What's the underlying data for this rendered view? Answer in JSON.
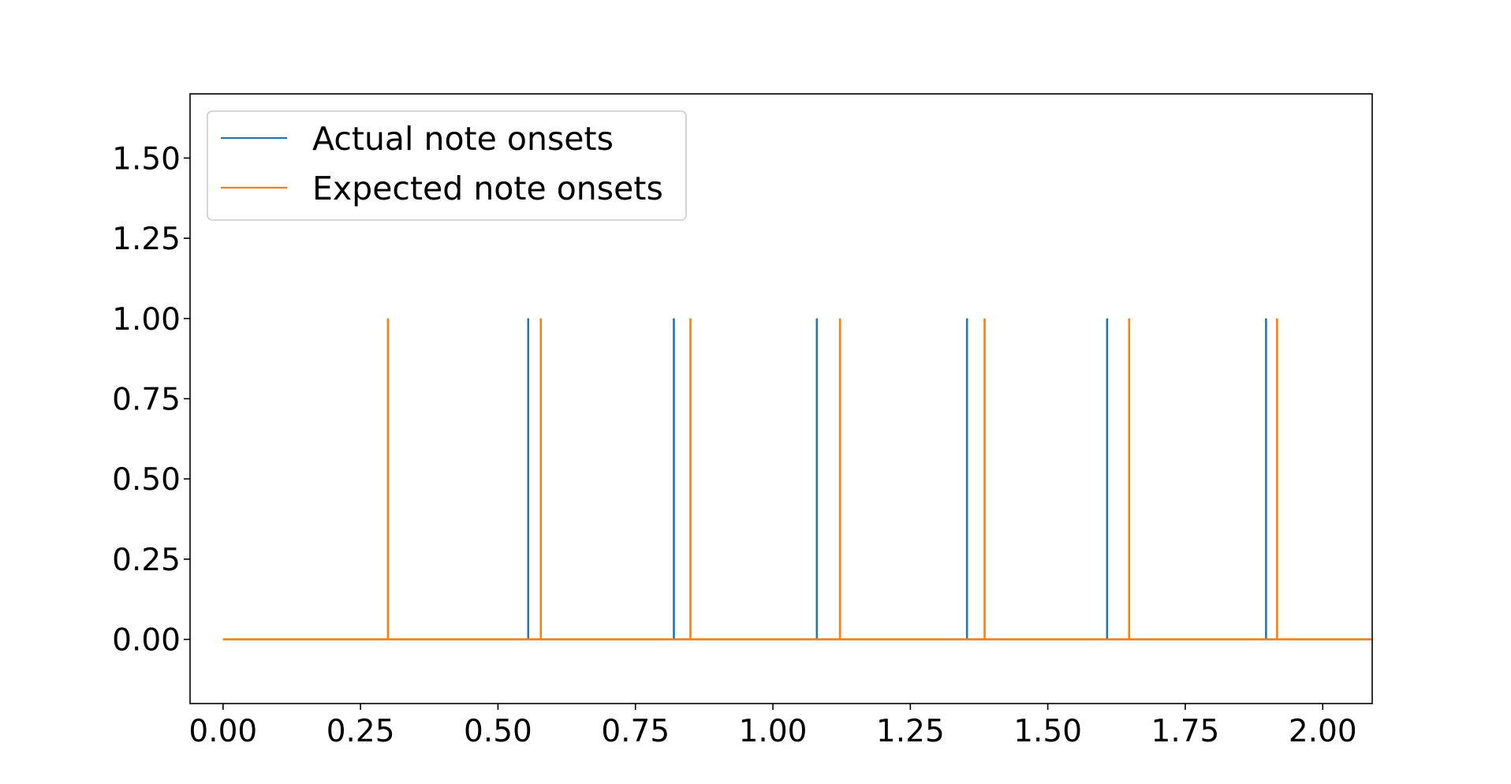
{
  "chart_data": {
    "type": "line",
    "xlim": [
      -0.06,
      2.09
    ],
    "ylim": [
      -0.2,
      1.7
    ],
    "x_ticks": [
      0.0,
      0.25,
      0.5,
      0.75,
      1.0,
      1.25,
      1.5,
      1.75,
      2.0
    ],
    "x_tick_labels": [
      "0.00",
      "0.25",
      "0.50",
      "0.75",
      "1.00",
      "1.25",
      "1.50",
      "1.75",
      "2.00"
    ],
    "y_ticks": [
      0.0,
      0.25,
      0.5,
      0.75,
      1.0,
      1.25,
      1.5
    ],
    "y_tick_labels": [
      "0.00",
      "0.25",
      "0.50",
      "0.75",
      "1.00",
      "1.25",
      "1.50"
    ],
    "grid": false,
    "legend_position": "upper-left",
    "baseline": 0,
    "spike_height": 1,
    "series": [
      {
        "name": "Actual note onsets",
        "color": "#1f77b4",
        "onsets": [
          0.555,
          0.82,
          1.08,
          1.353,
          1.608,
          1.897
        ]
      },
      {
        "name": "Expected note onsets",
        "color": "#ff7f0e",
        "onsets": [
          0.3,
          0.578,
          0.85,
          1.122,
          1.385,
          1.648,
          1.917
        ]
      }
    ]
  }
}
